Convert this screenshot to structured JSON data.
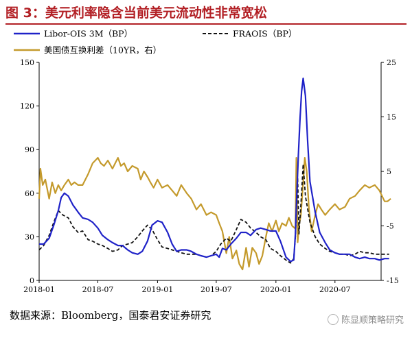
{
  "title": "图 3：美元利率隐含当前美元流动性非常宽松",
  "source": "数据来源：Bloomberg，国泰君安证券研究",
  "watermark": "陈显顺策略研究",
  "colors": {
    "title": "#b21f24",
    "libor_ois": "#1f22c8",
    "fraois": "#111111",
    "swap_spread": "#c49a2c"
  },
  "chart_data": {
    "type": "line",
    "x_ticks": [
      "2018-01",
      "2018-07",
      "2019-01",
      "2019-07",
      "2020-01",
      "2020-07"
    ],
    "y_left": {
      "lim": [
        0,
        150
      ],
      "ticks": [
        0,
        30,
        60,
        90,
        120,
        150
      ]
    },
    "y_right": {
      "lim": [
        -15,
        25
      ],
      "ticks": [
        -15,
        -5,
        5,
        15,
        25
      ]
    },
    "legend_position": "top-left",
    "series": [
      {
        "name": "Libor-OIS 3M（BP）",
        "axis": "left",
        "style": "solid",
        "points": [
          [
            "2018-01-01",
            25
          ],
          [
            "2018-01-15",
            25
          ],
          [
            "2018-02-01",
            29
          ],
          [
            "2018-02-15",
            38
          ],
          [
            "2018-03-01",
            48
          ],
          [
            "2018-03-10",
            57
          ],
          [
            "2018-03-20",
            60
          ],
          [
            "2018-04-01",
            58
          ],
          [
            "2018-04-15",
            52
          ],
          [
            "2018-05-01",
            47
          ],
          [
            "2018-05-15",
            43
          ],
          [
            "2018-06-01",
            42
          ],
          [
            "2018-06-15",
            40
          ],
          [
            "2018-07-01",
            36
          ],
          [
            "2018-07-15",
            31
          ],
          [
            "2018-08-01",
            28
          ],
          [
            "2018-08-15",
            26
          ],
          [
            "2018-09-01",
            24
          ],
          [
            "2018-09-15",
            24
          ],
          [
            "2018-10-01",
            21
          ],
          [
            "2018-10-15",
            19
          ],
          [
            "2018-11-01",
            18
          ],
          [
            "2018-11-15",
            20
          ],
          [
            "2018-12-01",
            27
          ],
          [
            "2018-12-15",
            38
          ],
          [
            "2019-01-01",
            41
          ],
          [
            "2019-01-15",
            40
          ],
          [
            "2019-02-01",
            33
          ],
          [
            "2019-02-15",
            25
          ],
          [
            "2019-03-01",
            20
          ],
          [
            "2019-03-15",
            21
          ],
          [
            "2019-04-01",
            21
          ],
          [
            "2019-04-15",
            20
          ],
          [
            "2019-05-01",
            18
          ],
          [
            "2019-05-15",
            17
          ],
          [
            "2019-06-01",
            16
          ],
          [
            "2019-06-15",
            17
          ],
          [
            "2019-07-01",
            18
          ],
          [
            "2019-07-10",
            16
          ],
          [
            "2019-07-20",
            22
          ],
          [
            "2019-08-01",
            21
          ],
          [
            "2019-08-15",
            25
          ],
          [
            "2019-09-01",
            29
          ],
          [
            "2019-09-15",
            33
          ],
          [
            "2019-10-01",
            33
          ],
          [
            "2019-10-15",
            31
          ],
          [
            "2019-11-01",
            35
          ],
          [
            "2019-11-15",
            36
          ],
          [
            "2019-12-01",
            35
          ],
          [
            "2019-12-15",
            34
          ],
          [
            "2020-01-01",
            34
          ],
          [
            "2020-01-15",
            27
          ],
          [
            "2020-02-01",
            16
          ],
          [
            "2020-02-15",
            13
          ],
          [
            "2020-02-25",
            14
          ],
          [
            "2020-03-01",
            32
          ],
          [
            "2020-03-05",
            58
          ],
          [
            "2020-03-10",
            85
          ],
          [
            "2020-03-15",
            110
          ],
          [
            "2020-03-20",
            130
          ],
          [
            "2020-03-25",
            139
          ],
          [
            "2020-04-01",
            127
          ],
          [
            "2020-04-08",
            95
          ],
          [
            "2020-04-15",
            68
          ],
          [
            "2020-05-01",
            47
          ],
          [
            "2020-05-15",
            33
          ],
          [
            "2020-06-01",
            26
          ],
          [
            "2020-06-15",
            21
          ],
          [
            "2020-07-01",
            19
          ],
          [
            "2020-07-15",
            18
          ],
          [
            "2020-08-01",
            18
          ],
          [
            "2020-08-15",
            18
          ],
          [
            "2020-09-01",
            16
          ],
          [
            "2020-09-15",
            15
          ],
          [
            "2020-10-01",
            16
          ],
          [
            "2020-10-15",
            15
          ],
          [
            "2020-11-01",
            15
          ],
          [
            "2020-11-15",
            14
          ],
          [
            "2020-12-01",
            15
          ],
          [
            "2020-12-15",
            15
          ]
        ]
      },
      {
        "name": "FRAOIS（BP）",
        "axis": "left",
        "style": "dashed",
        "points": [
          [
            "2018-01-01",
            21
          ],
          [
            "2018-01-15",
            24
          ],
          [
            "2018-02-01",
            31
          ],
          [
            "2018-02-15",
            40
          ],
          [
            "2018-03-01",
            48
          ],
          [
            "2018-03-15",
            45
          ],
          [
            "2018-04-01",
            43
          ],
          [
            "2018-04-15",
            37
          ],
          [
            "2018-05-01",
            33
          ],
          [
            "2018-05-15",
            34
          ],
          [
            "2018-06-01",
            28
          ],
          [
            "2018-06-15",
            27
          ],
          [
            "2018-07-01",
            25
          ],
          [
            "2018-07-15",
            24
          ],
          [
            "2018-08-01",
            22
          ],
          [
            "2018-08-15",
            20
          ],
          [
            "2018-09-01",
            21
          ],
          [
            "2018-09-15",
            24
          ],
          [
            "2018-10-01",
            25
          ],
          [
            "2018-10-15",
            26
          ],
          [
            "2018-11-01",
            30
          ],
          [
            "2018-11-15",
            34
          ],
          [
            "2018-12-01",
            38
          ],
          [
            "2018-12-15",
            35
          ],
          [
            "2019-01-01",
            28
          ],
          [
            "2019-01-15",
            23
          ],
          [
            "2019-02-01",
            22
          ],
          [
            "2019-02-15",
            21
          ],
          [
            "2019-03-01",
            20
          ],
          [
            "2019-03-15",
            19
          ],
          [
            "2019-04-01",
            18
          ],
          [
            "2019-04-15",
            18
          ],
          [
            "2019-05-01",
            18
          ],
          [
            "2019-05-15",
            17
          ],
          [
            "2019-06-01",
            16
          ],
          [
            "2019-06-15",
            17
          ],
          [
            "2019-07-01",
            20
          ],
          [
            "2019-07-15",
            25
          ],
          [
            "2019-08-01",
            29
          ],
          [
            "2019-08-15",
            27
          ],
          [
            "2019-09-01",
            35
          ],
          [
            "2019-09-15",
            42
          ],
          [
            "2019-10-01",
            40
          ],
          [
            "2019-10-15",
            36
          ],
          [
            "2019-11-01",
            33
          ],
          [
            "2019-11-15",
            30
          ],
          [
            "2019-12-01",
            28
          ],
          [
            "2019-12-15",
            22
          ],
          [
            "2020-01-01",
            20
          ],
          [
            "2020-01-15",
            17
          ],
          [
            "2020-02-01",
            14
          ],
          [
            "2020-02-15",
            12
          ],
          [
            "2020-02-25",
            15
          ],
          [
            "2020-03-01",
            30
          ],
          [
            "2020-03-05",
            55
          ],
          [
            "2020-03-08",
            70
          ],
          [
            "2020-03-12",
            32
          ],
          [
            "2020-03-20",
            60
          ],
          [
            "2020-03-25",
            80
          ],
          [
            "2020-04-01",
            58
          ],
          [
            "2020-04-15",
            40
          ],
          [
            "2020-05-01",
            30
          ],
          [
            "2020-05-15",
            25
          ],
          [
            "2020-06-01",
            22
          ],
          [
            "2020-06-15",
            20
          ],
          [
            "2020-07-01",
            19
          ],
          [
            "2020-07-15",
            18
          ],
          [
            "2020-08-01",
            18
          ],
          [
            "2020-08-15",
            17
          ],
          [
            "2020-09-01",
            18
          ],
          [
            "2020-09-15",
            20
          ],
          [
            "2020-10-01",
            19
          ],
          [
            "2020-10-15",
            19
          ],
          [
            "2020-11-01",
            18
          ],
          [
            "2020-11-15",
            18
          ],
          [
            "2020-12-01",
            18
          ],
          [
            "2020-12-15",
            18
          ]
        ]
      },
      {
        "name": "美国债互换利差（10YR，右）",
        "axis": "right",
        "style": "solid",
        "points": [
          [
            "2018-01-01",
            0
          ],
          [
            "2018-01-05",
            5.5
          ],
          [
            "2018-01-12",
            2.5
          ],
          [
            "2018-01-20",
            3.5
          ],
          [
            "2018-02-01",
            0
          ],
          [
            "2018-02-10",
            3
          ],
          [
            "2018-02-20",
            1
          ],
          [
            "2018-03-01",
            2.5
          ],
          [
            "2018-03-10",
            1.5
          ],
          [
            "2018-03-20",
            2.5
          ],
          [
            "2018-04-01",
            3.5
          ],
          [
            "2018-04-10",
            2.5
          ],
          [
            "2018-04-20",
            3
          ],
          [
            "2018-05-01",
            2.5
          ],
          [
            "2018-05-15",
            2.5
          ],
          [
            "2018-06-01",
            4.5
          ],
          [
            "2018-06-15",
            6.5
          ],
          [
            "2018-07-01",
            7.5
          ],
          [
            "2018-07-10",
            6.5
          ],
          [
            "2018-07-20",
            6
          ],
          [
            "2018-08-01",
            7
          ],
          [
            "2018-08-15",
            5.5
          ],
          [
            "2018-09-01",
            7.5
          ],
          [
            "2018-09-10",
            6
          ],
          [
            "2018-09-20",
            6.5
          ],
          [
            "2018-10-01",
            5
          ],
          [
            "2018-10-15",
            6
          ],
          [
            "2018-11-01",
            5.5
          ],
          [
            "2018-11-10",
            3.5
          ],
          [
            "2018-11-20",
            5
          ],
          [
            "2018-12-01",
            4
          ],
          [
            "2018-12-10",
            3
          ],
          [
            "2018-12-20",
            2
          ],
          [
            "2019-01-01",
            3.5
          ],
          [
            "2019-01-15",
            2
          ],
          [
            "2019-02-01",
            2.5
          ],
          [
            "2019-02-15",
            1.5
          ],
          [
            "2019-03-01",
            0.5
          ],
          [
            "2019-03-15",
            2.5
          ],
          [
            "2019-04-01",
            1
          ],
          [
            "2019-04-15",
            0
          ],
          [
            "2019-05-01",
            -2
          ],
          [
            "2019-05-15",
            -1
          ],
          [
            "2019-06-01",
            -3
          ],
          [
            "2019-06-15",
            -2.5
          ],
          [
            "2019-07-01",
            -3
          ],
          [
            "2019-07-10",
            -4.5
          ],
          [
            "2019-07-20",
            -6
          ],
          [
            "2019-08-01",
            -10
          ],
          [
            "2019-08-10",
            -7
          ],
          [
            "2019-08-20",
            -11
          ],
          [
            "2019-09-01",
            -9.5
          ],
          [
            "2019-09-10",
            -12
          ],
          [
            "2019-09-20",
            -13
          ],
          [
            "2019-10-01",
            -9
          ],
          [
            "2019-10-10",
            -12.5
          ],
          [
            "2019-10-20",
            -9
          ],
          [
            "2019-11-01",
            -10
          ],
          [
            "2019-11-10",
            -12
          ],
          [
            "2019-11-20",
            -10.5
          ],
          [
            "2019-12-01",
            -7
          ],
          [
            "2019-12-10",
            -4.5
          ],
          [
            "2019-12-20",
            -6
          ],
          [
            "2020-01-01",
            -4
          ],
          [
            "2020-01-10",
            -6
          ],
          [
            "2020-01-20",
            -4.5
          ],
          [
            "2020-02-01",
            -5
          ],
          [
            "2020-02-10",
            -3.5
          ],
          [
            "2020-02-20",
            -5
          ],
          [
            "2020-03-01",
            -5.5
          ],
          [
            "2020-03-04",
            7.5
          ],
          [
            "2020-03-08",
            -8
          ],
          [
            "2020-03-12",
            -5
          ],
          [
            "2020-03-18",
            -3
          ],
          [
            "2020-03-25",
            3
          ],
          [
            "2020-03-30",
            7.5
          ],
          [
            "2020-04-05",
            5
          ],
          [
            "2020-04-12",
            -2
          ],
          [
            "2020-04-20",
            -6
          ],
          [
            "2020-05-01",
            -3
          ],
          [
            "2020-05-10",
            -1
          ],
          [
            "2020-05-20",
            -2
          ],
          [
            "2020-06-01",
            -3
          ],
          [
            "2020-06-15",
            -2
          ],
          [
            "2020-07-01",
            -1
          ],
          [
            "2020-07-15",
            -2
          ],
          [
            "2020-08-01",
            -1.5
          ],
          [
            "2020-08-15",
            0
          ],
          [
            "2020-09-01",
            0.5
          ],
          [
            "2020-09-15",
            1.5
          ],
          [
            "2020-10-01",
            2.5
          ],
          [
            "2020-10-15",
            2
          ],
          [
            "2020-11-01",
            2.5
          ],
          [
            "2020-11-15",
            1.5
          ],
          [
            "2020-12-01",
            -0.5
          ],
          [
            "2020-12-10",
            -0.5
          ],
          [
            "2020-12-20",
            0
          ]
        ]
      }
    ]
  }
}
